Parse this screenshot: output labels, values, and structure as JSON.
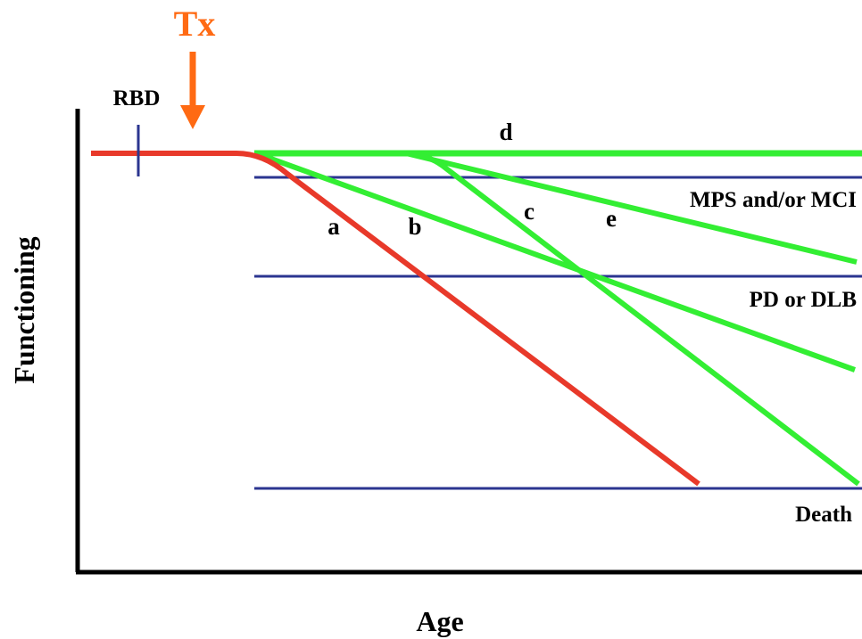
{
  "axes": {
    "x_label": "Age",
    "y_label": "Functioning"
  },
  "treatment": {
    "label": "Tx",
    "color": "#ff6a13"
  },
  "onset_marker": {
    "label": "RBD",
    "color": "#2b3590"
  },
  "thresholds": [
    {
      "id": "mps",
      "label": "MPS and/or MCI"
    },
    {
      "id": "pd",
      "label": "PD or DLB"
    },
    {
      "id": "death",
      "label": "Death"
    }
  ],
  "trajectories": [
    {
      "id": "a",
      "label": "a",
      "color": "#e8392a"
    },
    {
      "id": "b",
      "label": "b",
      "color": "#33ee33"
    },
    {
      "id": "c",
      "label": "c",
      "color": "#33ee33"
    },
    {
      "id": "d",
      "label": "d",
      "color": "#33ee33"
    },
    {
      "id": "e",
      "label": "e",
      "color": "#33ee33"
    }
  ],
  "colors": {
    "axis": "#000000",
    "threshold_line": "#2b3590",
    "untreated": "#e8392a",
    "treated": "#33ee33",
    "treatment_arrow": "#ff6a13"
  }
}
